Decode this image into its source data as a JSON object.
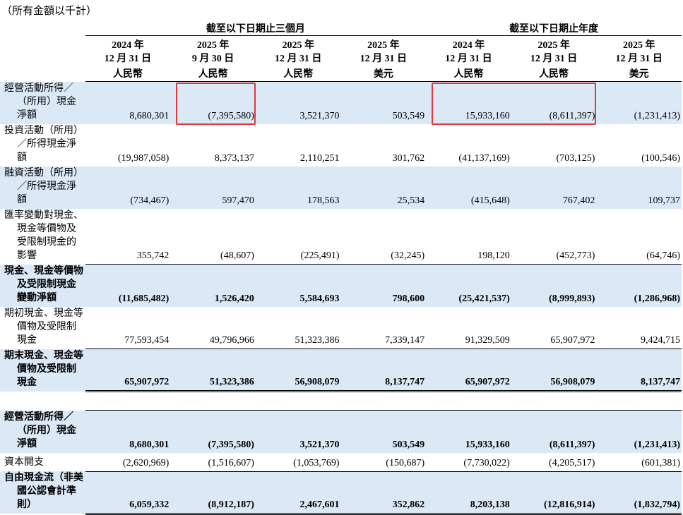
{
  "note": "（所有金額以千計）",
  "table": {
    "groups": [
      {
        "label": "截至以下日期止三個月",
        "columns": [
          {
            "year": "2024 年",
            "date": "12 月 31 日",
            "currency": "人民幣"
          },
          {
            "year": "2025 年",
            "date": "9 月 30 日",
            "currency": "人民幣"
          },
          {
            "year": "2025 年",
            "date": "12 月 31 日",
            "currency": "人民幣"
          },
          {
            "year": "2025 年",
            "date": "12 月 31 日",
            "currency": "美元"
          }
        ]
      },
      {
        "label": "截至以下日期止年度",
        "columns": [
          {
            "year": "2024 年",
            "date": "12 月 31 日",
            "currency": "人民幣"
          },
          {
            "year": "2025 年",
            "date": "12 月 31 日",
            "currency": "人民幣"
          },
          {
            "year": "2025 年",
            "date": "12 月 31 日",
            "currency": "美元"
          }
        ]
      }
    ],
    "sections": [
      {
        "rows": [
          {
            "label": "經營活動所得／（所用）現金淨額",
            "values": [
              "8,680,301",
              "(7,395,580)",
              "3,521,370",
              "503,549",
              "15,933,160",
              "(8,611,397)",
              "(1,231,413)"
            ],
            "bold": false,
            "shaded": true
          },
          {
            "label": "投資活動（所用）／所得現金淨額",
            "values": [
              "(19,987,058)",
              "8,373,137",
              "2,110,251",
              "301,762",
              "(41,137,169)",
              "(703,125)",
              "(100,546)"
            ],
            "bold": false,
            "shaded": false
          },
          {
            "label": "融資活動（所用）／所得現金淨額",
            "values": [
              "(734,467)",
              "597,470",
              "178,563",
              "25,534",
              "(415,648)",
              "767,402",
              "109,737"
            ],
            "bold": false,
            "shaded": true
          },
          {
            "label": "匯率變動對現金、現金等價物及受限制現金的影響",
            "values": [
              "355,742",
              "(48,607)",
              "(225,491)",
              "(32,245)",
              "198,120",
              "(452,773)",
              "(64,746)"
            ],
            "bold": false,
            "shaded": false
          },
          {
            "label": "現金、現金等價物及受限制現金變動淨額",
            "values": [
              "(11,685,482)",
              "1,526,420",
              "5,584,693",
              "798,600",
              "(25,421,537)",
              "(8,999,893)",
              "(1,286,968)"
            ],
            "bold": true,
            "shaded": true
          },
          {
            "label": "期初現金、現金等價物及受限制現金",
            "values": [
              "77,593,454",
              "49,796,966",
              "51,323,386",
              "7,339,147",
              "91,329,509",
              "65,907,972",
              "9,424,715"
            ],
            "bold": false,
            "shaded": false
          },
          {
            "label": "期末現金、現金等價物及受限制現金",
            "values": [
              "65,907,972",
              "51,323,386",
              "56,908,079",
              "8,137,747",
              "65,907,972",
              "56,908,079",
              "8,137,747"
            ],
            "bold": true,
            "shaded": true
          }
        ]
      },
      {
        "rows": [
          {
            "label": "經營活動所得／（所用）現金淨額",
            "values": [
              "8,680,301",
              "(7,395,580)",
              "3,521,370",
              "503,549",
              "15,933,160",
              "(8,611,397)",
              "(1,231,413)"
            ],
            "bold": true,
            "shaded": true
          },
          {
            "label": "資本開支",
            "values": [
              "(2,620,969)",
              "(1,516,607)",
              "(1,053,769)",
              "(150,687)",
              "(7,730,022)",
              "(4,205,517)",
              "(601,381)"
            ],
            "bold": false,
            "shaded": false
          },
          {
            "label": "自由現金流（非美國公認會計準則）",
            "values": [
              "6,059,332",
              "(8,912,187)",
              "2,467,601",
              "352,862",
              "8,203,138",
              "(12,816,914)",
              "(1,832,794)"
            ],
            "bold": true,
            "shaded": true
          }
        ]
      }
    ]
  }
}
